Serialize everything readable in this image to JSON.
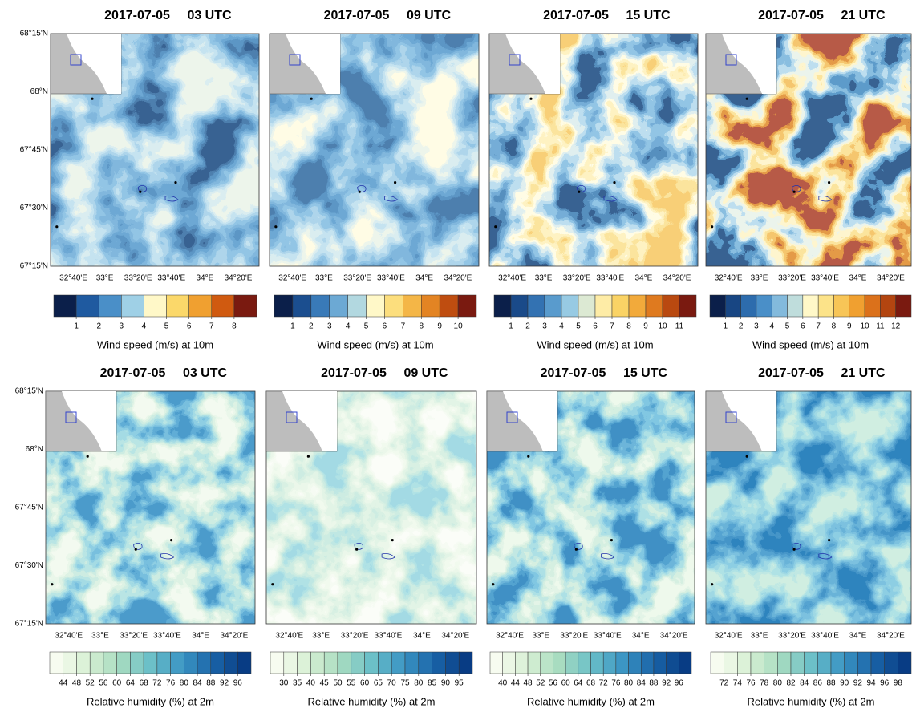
{
  "lat_labels": [
    "68°15'N",
    "68°N",
    "67°45'N",
    "67°30'N",
    "67°15'N"
  ],
  "lon_labels": [
    "32°40'E",
    "33°E",
    "33°20'E",
    "33°40'E",
    "34°E",
    "34°20'E"
  ],
  "palettes": {
    "wind": [
      "#0b1f4a",
      "#1f5aa0",
      "#4a8fc8",
      "#9fd0e6",
      "#fff8c8",
      "#fbd86a",
      "#f0a030",
      "#d05a10",
      "#7a1a10"
    ],
    "humidity": [
      "#f7fcf0",
      "#d8f0d4",
      "#a8dcc0",
      "#6cc0c8",
      "#3c96c4",
      "#1a64a8",
      "#083c84"
    ]
  },
  "panels": [
    {
      "date": "2017-07-05",
      "time": "03 UTC",
      "colorbar": {
        "palette": "wind",
        "ticks": [
          1,
          2,
          3,
          4,
          5,
          6,
          7,
          8
        ],
        "label": "Wind speed (m/s) at 10m"
      }
    },
    {
      "date": "2017-07-05",
      "time": "09 UTC",
      "colorbar": {
        "palette": "wind",
        "ticks": [
          1,
          2,
          3,
          4,
          5,
          6,
          7,
          8,
          9,
          10
        ],
        "label": "Wind speed (m/s) at 10m"
      }
    },
    {
      "date": "2017-07-05",
      "time": "15 UTC",
      "colorbar": {
        "palette": "wind",
        "ticks": [
          1,
          2,
          3,
          4,
          5,
          6,
          7,
          8,
          9,
          10,
          11
        ],
        "label": "Wind speed (m/s) at 10m"
      }
    },
    {
      "date": "2017-07-05",
      "time": "21 UTC",
      "colorbar": {
        "palette": "wind",
        "ticks": [
          1,
          2,
          3,
          4,
          5,
          6,
          7,
          8,
          9,
          10,
          11,
          12
        ],
        "label": "Wind speed (m/s) at 10m"
      }
    },
    {
      "date": "2017-07-05",
      "time": "03 UTC",
      "colorbar": {
        "palette": "humidity",
        "ticks": [
          44,
          48,
          52,
          56,
          60,
          64,
          68,
          72,
          76,
          80,
          84,
          88,
          92,
          96
        ],
        "label": "Relative humidity (%) at 2m"
      }
    },
    {
      "date": "2017-07-05",
      "time": "09 UTC",
      "colorbar": {
        "palette": "humidity",
        "ticks": [
          30,
          35,
          40,
          45,
          50,
          55,
          60,
          65,
          70,
          75,
          80,
          85,
          90,
          95
        ],
        "label": "Relative humidity (%) at 2m"
      }
    },
    {
      "date": "2017-07-05",
      "time": "15 UTC",
      "colorbar": {
        "palette": "humidity",
        "ticks": [
          40,
          44,
          48,
          52,
          56,
          60,
          64,
          68,
          72,
          76,
          80,
          84,
          88,
          92,
          96
        ],
        "label": "Relative humidity (%) at 2m"
      }
    },
    {
      "date": "2017-07-05",
      "time": "21 UTC",
      "colorbar": {
        "palette": "humidity",
        "ticks": [
          72,
          74,
          76,
          78,
          80,
          82,
          84,
          86,
          88,
          90,
          92,
          94,
          96,
          98
        ],
        "label": "Relative humidity (%) at 2m"
      }
    }
  ]
}
